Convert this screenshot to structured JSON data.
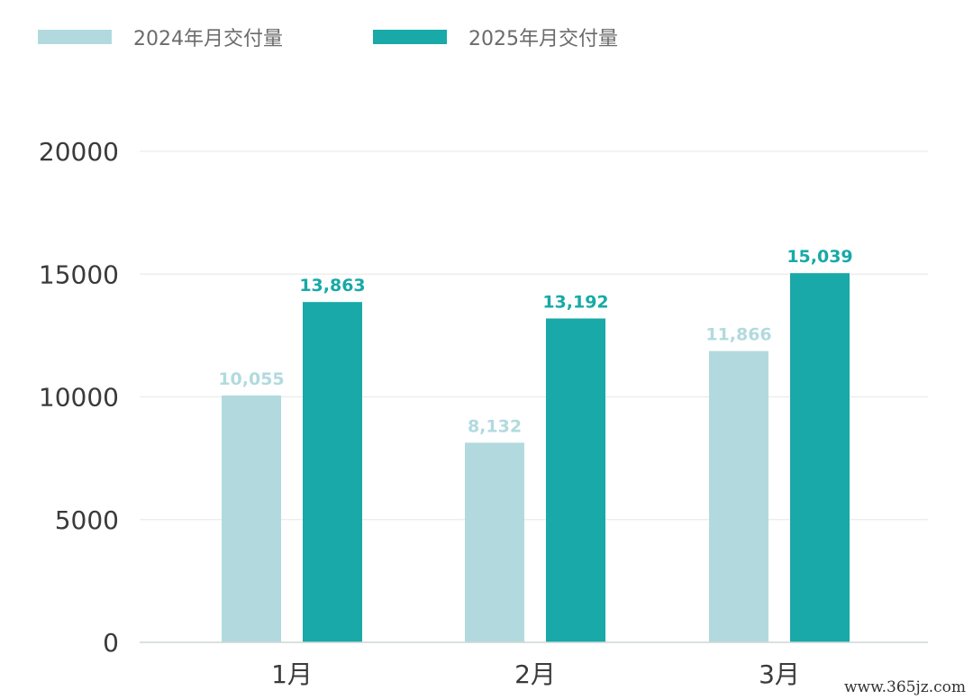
{
  "chart_data": {
    "type": "bar",
    "categories": [
      "1月",
      "2月",
      "3月"
    ],
    "series": [
      {
        "name": "2024年月交付量",
        "values": [
          10055,
          8132,
          11866
        ],
        "labels": [
          "10,055",
          "8,132",
          "11,866"
        ],
        "color": "#b2dade"
      },
      {
        "name": "2025年月交付量",
        "values": [
          13863,
          13192,
          15039
        ],
        "labels": [
          "13,863",
          "13,192",
          "15,039"
        ],
        "color": "#18a9a8"
      }
    ],
    "yticks": [
      "0",
      "5000",
      "10000",
      "15000",
      "20000"
    ],
    "ylim": [
      0,
      20000
    ],
    "grid": true,
    "legend": "top-left",
    "title": "",
    "xlabel": "",
    "ylabel": ""
  },
  "watermark": "www.365jz.com"
}
